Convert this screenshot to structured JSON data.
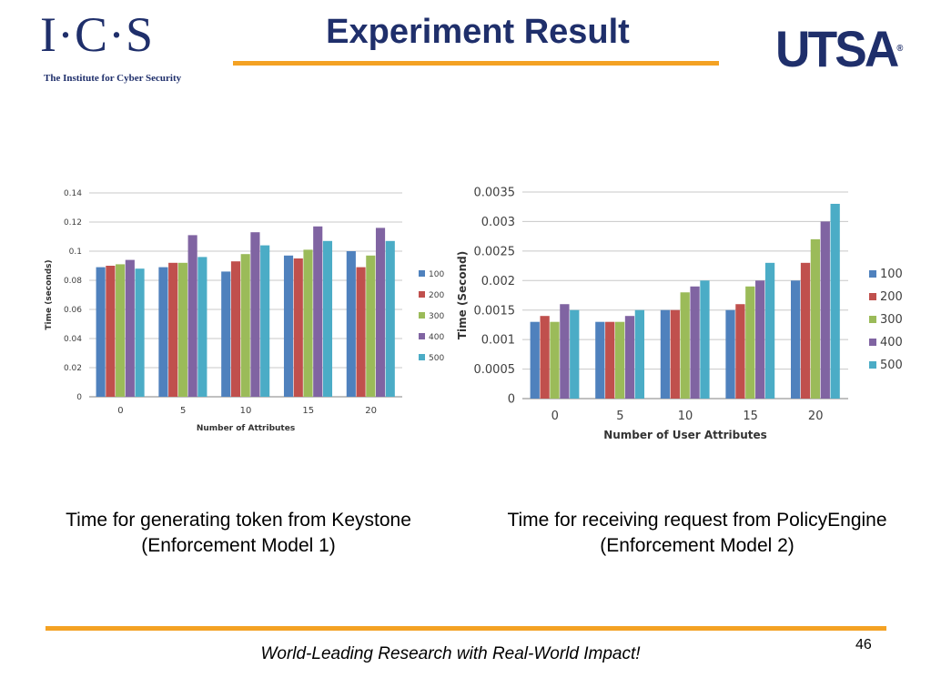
{
  "header": {
    "ics_logo_text": "I·C·S",
    "ics_logo_subtitle": "The Institute for Cyber Security",
    "title": "Experiment Result",
    "utsa_logo_text": "UTSA",
    "utsa_reg_mark": "®"
  },
  "captions": {
    "left_line1": "Time for generating token from Keystone",
    "left_line2": "(Enforcement Model 1)",
    "right_line1": "Time for receiving request from PolicyEngine",
    "right_line2": "(Enforcement Model 2)"
  },
  "footer": {
    "tagline": "World-Leading Research with Real-World Impact!",
    "page_number": "46"
  },
  "colors": {
    "navy": "#1f2f6b",
    "orange": "#f4a223",
    "s100": "#4f81bd",
    "s200": "#c0504d",
    "s300": "#9bbb59",
    "s400": "#8064a2",
    "s500": "#4bacc6"
  },
  "chart_data": [
    {
      "type": "bar",
      "title": "",
      "xlabel": "Number of Attributes",
      "ylabel": "Time (seconds)",
      "categories": [
        "0",
        "5",
        "10",
        "15",
        "20"
      ],
      "ylim": [
        0,
        0.14
      ],
      "yticks": [
        "0",
        "0.02",
        "0.04",
        "0.06",
        "0.08",
        "0.1",
        "0.12",
        "0.14"
      ],
      "grid": true,
      "legend_position": "right",
      "series": [
        {
          "name": "100",
          "values": [
            0.089,
            0.089,
            0.086,
            0.097,
            0.1
          ]
        },
        {
          "name": "200",
          "values": [
            0.09,
            0.092,
            0.093,
            0.095,
            0.089
          ]
        },
        {
          "name": "300",
          "values": [
            0.091,
            0.092,
            0.098,
            0.101,
            0.097
          ]
        },
        {
          "name": "400",
          "values": [
            0.094,
            0.111,
            0.113,
            0.117,
            0.116
          ]
        },
        {
          "name": "500",
          "values": [
            0.088,
            0.096,
            0.104,
            0.107,
            0.107
          ]
        }
      ]
    },
    {
      "type": "bar",
      "title": "",
      "xlabel": "Number of User Attributes",
      "ylabel": "Time (Second)",
      "categories": [
        "0",
        "5",
        "10",
        "15",
        "20"
      ],
      "ylim": [
        0,
        0.0035
      ],
      "yticks": [
        "0",
        "0.0005",
        "0.001",
        "0.0015",
        "0.002",
        "0.0025",
        "0.003",
        "0.0035"
      ],
      "grid": true,
      "legend_position": "right",
      "series": [
        {
          "name": "100",
          "values": [
            0.0013,
            0.0013,
            0.0015,
            0.0015,
            0.002
          ]
        },
        {
          "name": "200",
          "values": [
            0.0014,
            0.0013,
            0.0015,
            0.0016,
            0.0023
          ]
        },
        {
          "name": "300",
          "values": [
            0.0013,
            0.0013,
            0.0018,
            0.0019,
            0.0027
          ]
        },
        {
          "name": "400",
          "values": [
            0.0016,
            0.0014,
            0.0019,
            0.002,
            0.003
          ]
        },
        {
          "name": "500",
          "values": [
            0.0015,
            0.0015,
            0.002,
            0.0023,
            0.0033
          ]
        }
      ]
    }
  ]
}
